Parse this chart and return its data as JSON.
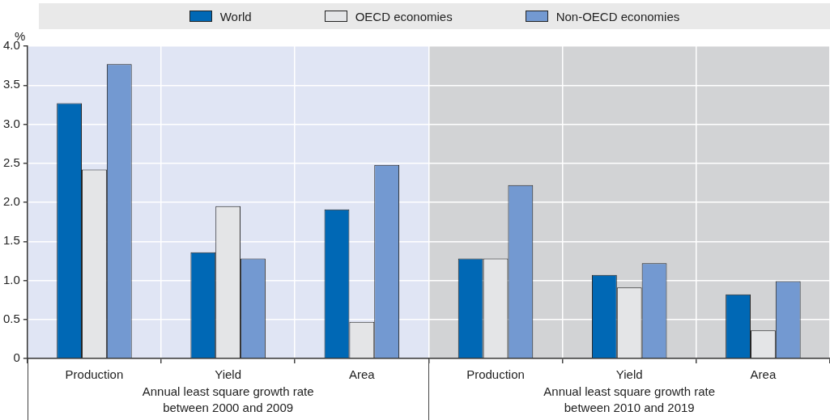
{
  "chart_data": {
    "type": "bar",
    "ylabel": "%",
    "categories": [
      "Production",
      "Yield",
      "Area",
      "Production",
      "Yield",
      "Area"
    ],
    "series": [
      {
        "name": "World",
        "color": "#0068b5",
        "values": [
          3.27,
          1.36,
          1.91,
          1.28,
          1.07,
          0.82
        ]
      },
      {
        "name": "OECD economies",
        "color": "#e4e5e7",
        "values": [
          2.42,
          1.95,
          0.47,
          1.28,
          0.91,
          0.36
        ]
      },
      {
        "name": "Non-OECD economies",
        "color": "#7399d1",
        "values": [
          3.77,
          1.28,
          2.48,
          2.22,
          1.22,
          0.99
        ]
      }
    ],
    "ylim": [
      0,
      4
    ],
    "yticks": [
      0,
      0.5,
      {
        "value": 1,
        "label": "1.0"
      },
      1.5,
      {
        "value": 2,
        "label": "2.0"
      },
      2.5,
      {
        "value": 3,
        "label": "3.0"
      },
      3.5,
      {
        "value": 4,
        "label": "4.0"
      }
    ],
    "annotations": [
      "Annual least square growth rate between 2000 and 2009",
      "Annual least square growth rate between 2010 and 2019"
    ],
    "grid": true,
    "legend": "top"
  }
}
